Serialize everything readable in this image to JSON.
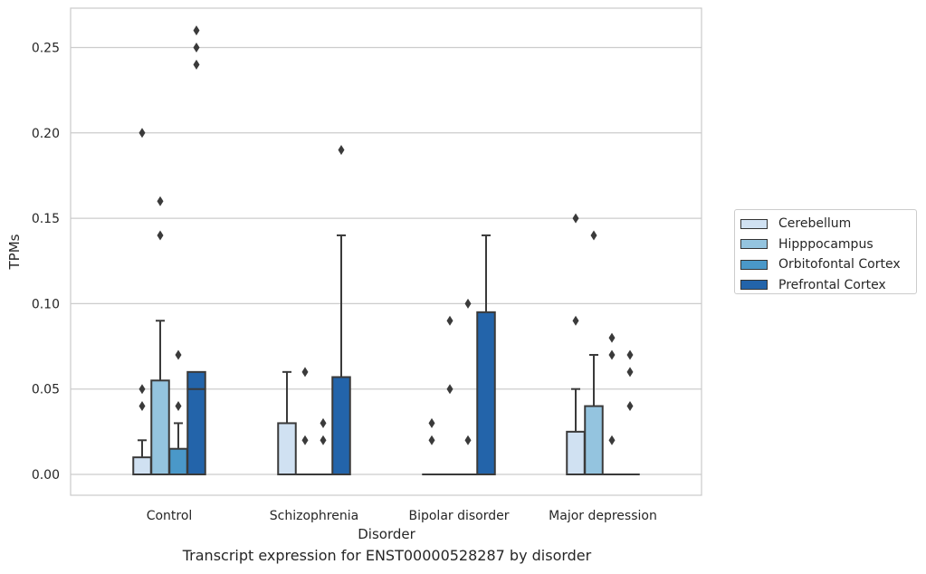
{
  "chart_data": {
    "type": "box",
    "title": "",
    "caption": "Transcript expression for ENST00000528287 by disorder",
    "xlabel": "Disorder",
    "ylabel": "TPMs",
    "ylim": [
      -0.012,
      0.274
    ],
    "yticks": [
      "0.00",
      "0.05",
      "0.10",
      "0.15",
      "0.20",
      "0.25"
    ],
    "ytick_values": [
      0,
      0.05,
      0.1,
      0.15,
      0.2,
      0.25
    ],
    "grid": "horizontal",
    "legend_position": "right",
    "categories": [
      "Control",
      "Schizophrenia",
      "Bipolar disorder",
      "Major depression"
    ],
    "series": [
      {
        "name": "Cerebellum",
        "color": "#d0e1f2",
        "boxes": [
          {
            "q1": 0,
            "median": 0,
            "q3": 0.01,
            "whisker_low": 0,
            "whisker_high": 0.02,
            "outliers": [
              0.04,
              0.05,
              0.2
            ]
          },
          {
            "q1": 0,
            "median": 0,
            "q3": 0.03,
            "whisker_low": 0,
            "whisker_high": 0.06,
            "outliers": []
          },
          {
            "q1": 0,
            "median": 0,
            "q3": 0,
            "whisker_low": 0,
            "whisker_high": 0,
            "outliers": [
              0.02,
              0.03
            ]
          },
          {
            "q1": 0,
            "median": 0,
            "q3": 0.025,
            "whisker_low": 0,
            "whisker_high": 0.05,
            "outliers": [
              0.09,
              0.15
            ]
          }
        ]
      },
      {
        "name": "Hipppocampus",
        "color": "#94c4df",
        "boxes": [
          {
            "q1": 0,
            "median": 0,
            "q3": 0.055,
            "whisker_low": 0,
            "whisker_high": 0.09,
            "outliers": [
              0.14,
              0.16
            ]
          },
          {
            "q1": 0,
            "median": 0,
            "q3": 0,
            "whisker_low": 0,
            "whisker_high": 0,
            "outliers": [
              0.02,
              0.06
            ]
          },
          {
            "q1": 0,
            "median": 0,
            "q3": 0,
            "whisker_low": 0,
            "whisker_high": 0,
            "outliers": [
              0.05,
              0.09
            ]
          },
          {
            "q1": 0,
            "median": 0,
            "q3": 0.04,
            "whisker_low": 0,
            "whisker_high": 0.07,
            "outliers": [
              0.14
            ]
          }
        ]
      },
      {
        "name": "Orbitofontal Cortex",
        "color": "#4a98c9",
        "boxes": [
          {
            "q1": 0,
            "median": 0,
            "q3": 0.015,
            "whisker_low": 0,
            "whisker_high": 0.03,
            "outliers": [
              0.04,
              0.07
            ]
          },
          {
            "q1": 0,
            "median": 0,
            "q3": 0,
            "whisker_low": 0,
            "whisker_high": 0,
            "outliers": [
              0.02,
              0.03
            ]
          },
          {
            "q1": 0,
            "median": 0,
            "q3": 0,
            "whisker_low": 0,
            "whisker_high": 0,
            "outliers": [
              0.02,
              0.1
            ]
          },
          {
            "q1": 0,
            "median": 0,
            "q3": 0,
            "whisker_low": 0,
            "whisker_high": 0,
            "outliers": [
              0.02,
              0.07,
              0.08
            ]
          }
        ]
      },
      {
        "name": "Prefrontal Cortex",
        "color": "#2364aa",
        "boxes": [
          {
            "q1": 0,
            "median": 0.05,
            "q3": 0.06,
            "whisker_low": 0,
            "whisker_high": 0.06,
            "outliers": [
              0.24,
              0.25,
              0.26
            ]
          },
          {
            "q1": 0,
            "median": 0,
            "q3": 0.057,
            "whisker_low": 0,
            "whisker_high": 0.14,
            "outliers": [
              0.19
            ]
          },
          {
            "q1": 0,
            "median": 0,
            "q3": 0.095,
            "whisker_low": 0,
            "whisker_high": 0.14,
            "outliers": []
          },
          {
            "q1": 0,
            "median": 0,
            "q3": 0,
            "whisker_low": 0,
            "whisker_high": 0,
            "outliers": [
              0.04,
              0.06,
              0.07
            ]
          }
        ]
      }
    ]
  }
}
